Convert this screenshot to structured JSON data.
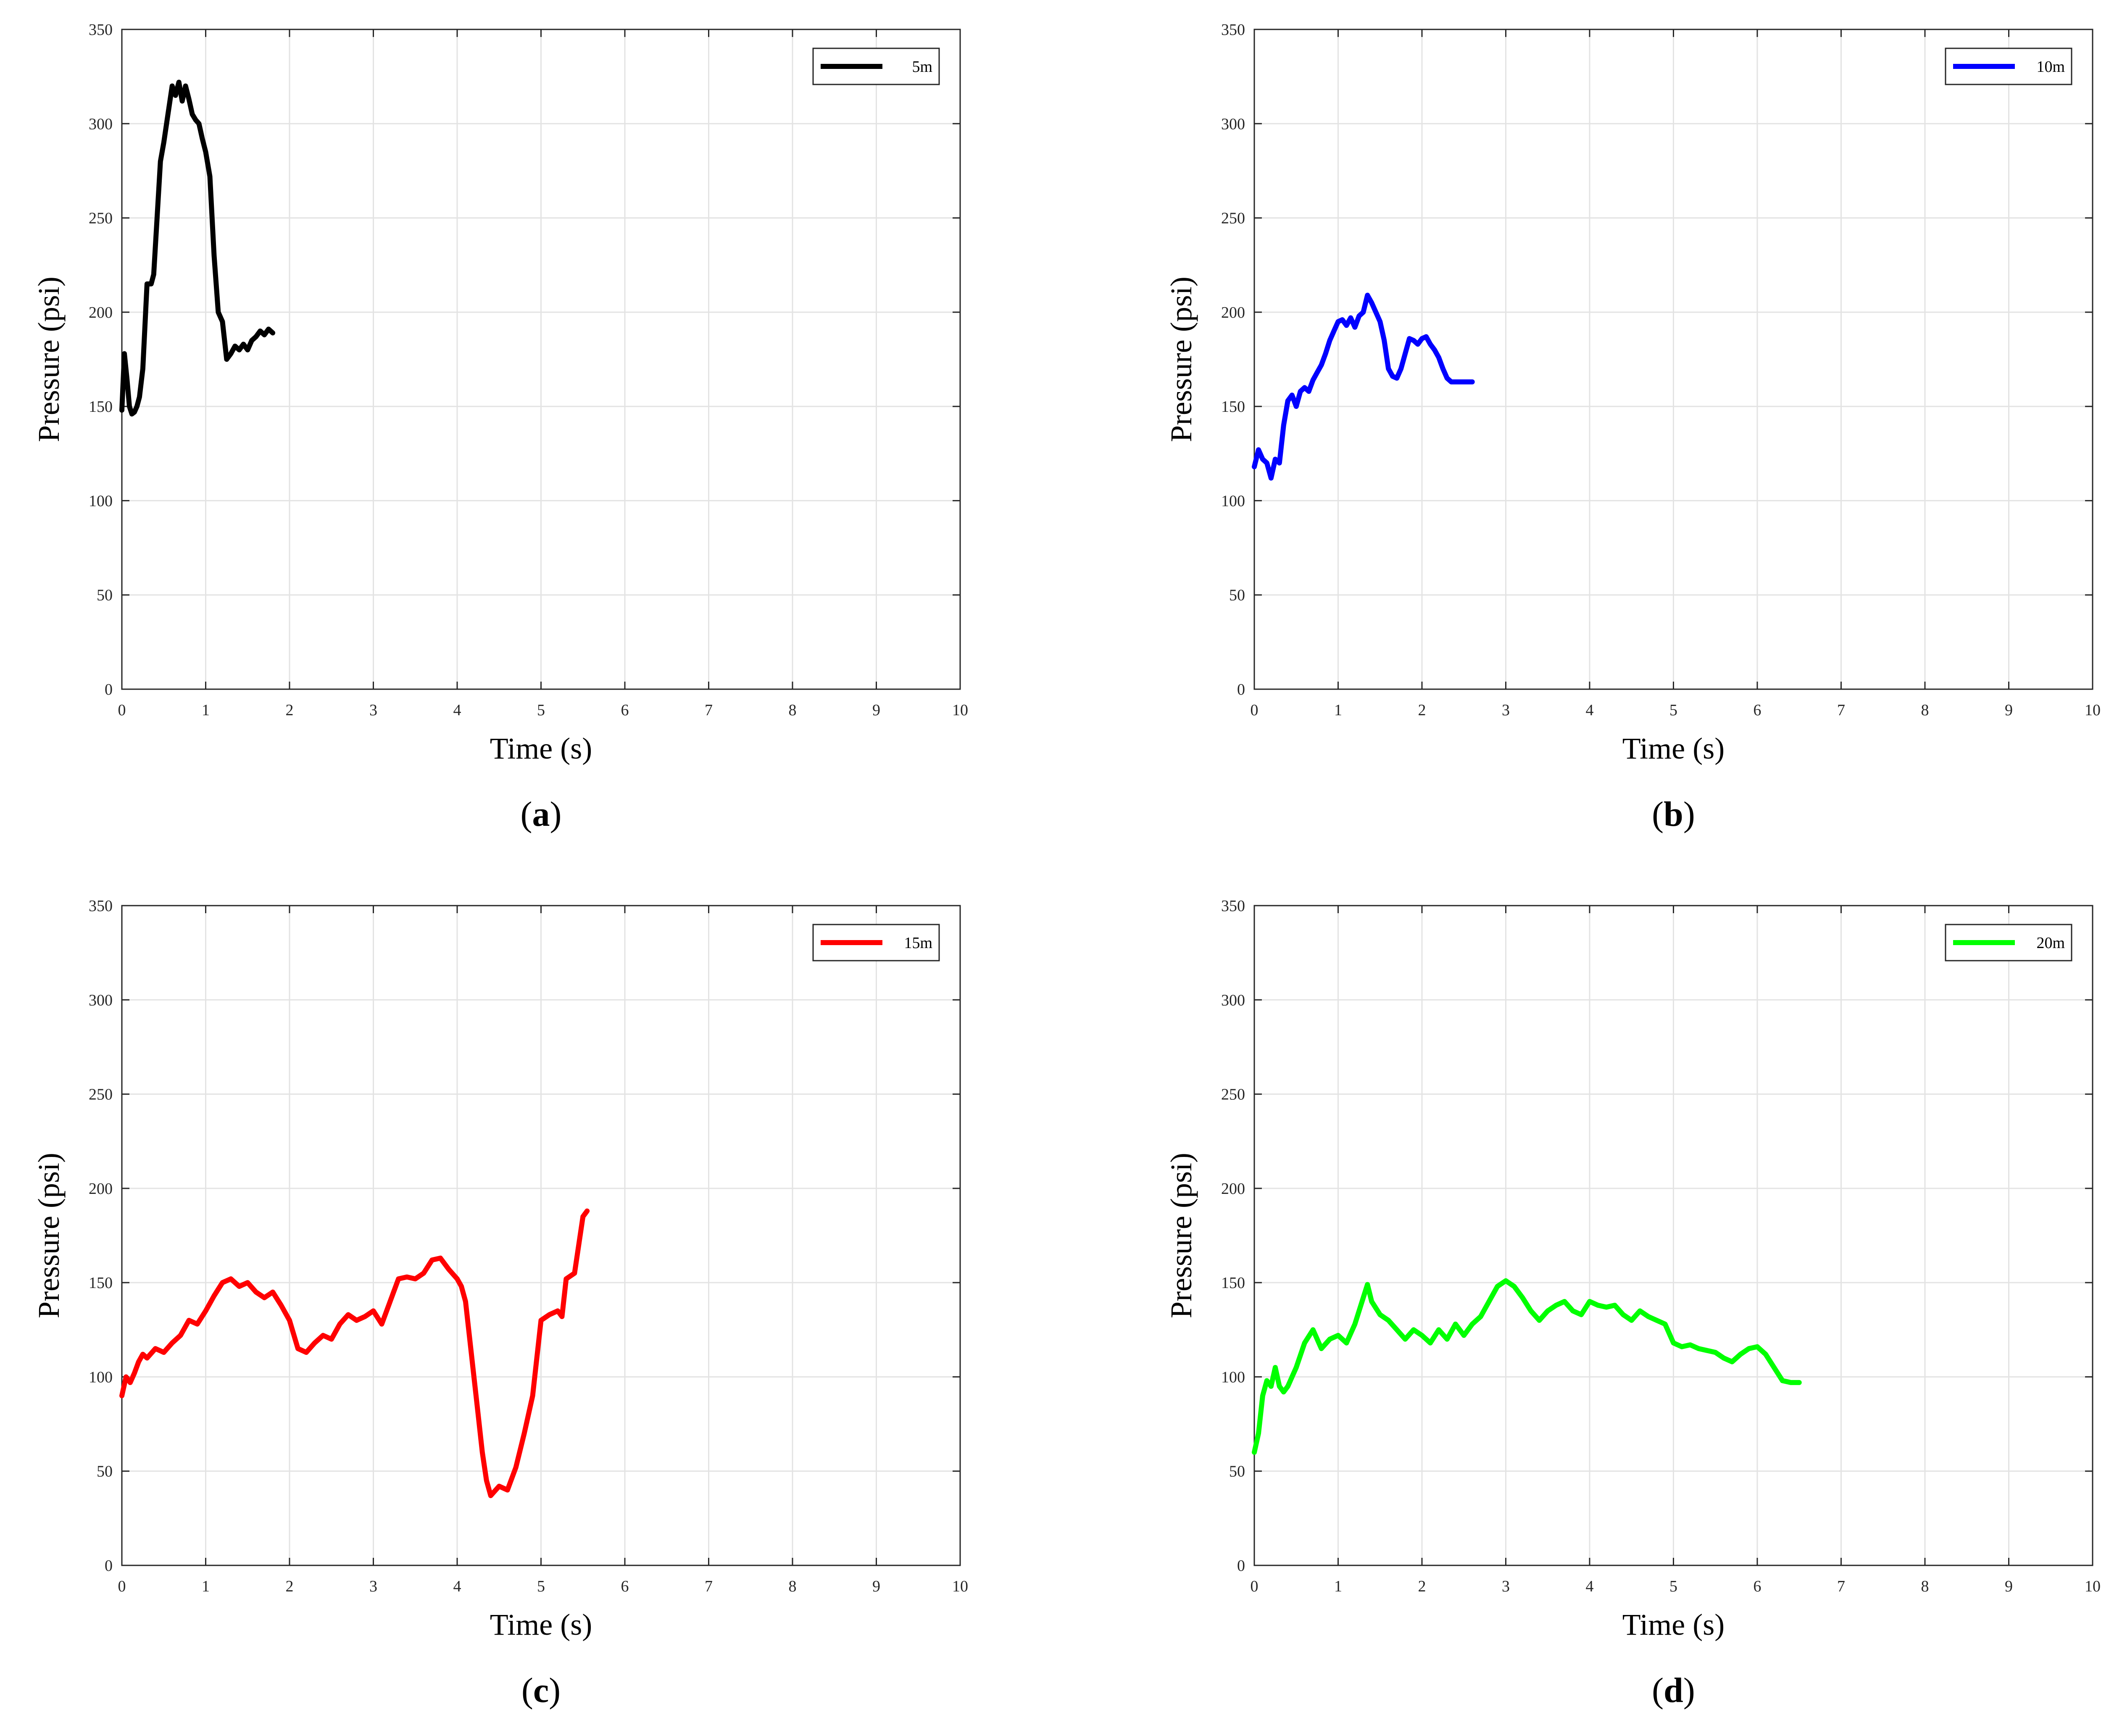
{
  "chart_data": [
    {
      "type": "line",
      "panel_label": "a",
      "xlabel": "Time (s)",
      "ylabel": "Pressure (psi)",
      "xlim": [
        0,
        10
      ],
      "ylim": [
        0,
        350
      ],
      "xticks": [
        0,
        1,
        2,
        3,
        4,
        5,
        6,
        7,
        8,
        9,
        10
      ],
      "yticks": [
        0,
        50,
        100,
        150,
        200,
        250,
        300,
        350
      ],
      "grid": true,
      "legend_position": "top-right",
      "series": [
        {
          "name": "5m",
          "color": "#000000",
          "x": [
            0,
            0.03,
            0.06,
            0.09,
            0.12,
            0.15,
            0.18,
            0.21,
            0.25,
            0.3,
            0.35,
            0.38,
            0.42,
            0.46,
            0.5,
            0.55,
            0.6,
            0.64,
            0.68,
            0.72,
            0.76,
            0.8,
            0.84,
            0.88,
            0.92,
            0.96,
            1.0,
            1.05,
            1.1,
            1.15,
            1.2,
            1.25,
            1.3,
            1.35,
            1.4,
            1.45,
            1.5,
            1.55,
            1.6,
            1.65,
            1.7,
            1.75,
            1.8
          ],
          "y": [
            148,
            178,
            165,
            150,
            146,
            147,
            150,
            155,
            170,
            215,
            215,
            220,
            250,
            280,
            290,
            305,
            320,
            315,
            322,
            312,
            320,
            313,
            305,
            302,
            300,
            292,
            285,
            272,
            230,
            200,
            195,
            175,
            178,
            182,
            180,
            183,
            180,
            185,
            187,
            190,
            188,
            191,
            189
          ]
        }
      ]
    },
    {
      "type": "line",
      "panel_label": "b",
      "xlabel": "Time (s)",
      "ylabel": "Pressure (psi)",
      "xlim": [
        0,
        10
      ],
      "ylim": [
        0,
        350
      ],
      "xticks": [
        0,
        1,
        2,
        3,
        4,
        5,
        6,
        7,
        8,
        9,
        10
      ],
      "yticks": [
        0,
        50,
        100,
        150,
        200,
        250,
        300,
        350
      ],
      "grid": true,
      "legend_position": "top-right",
      "series": [
        {
          "name": "10m",
          "color": "#0000ff",
          "x": [
            0,
            0.05,
            0.1,
            0.15,
            0.2,
            0.25,
            0.3,
            0.35,
            0.4,
            0.45,
            0.5,
            0.55,
            0.6,
            0.65,
            0.7,
            0.75,
            0.8,
            0.85,
            0.9,
            0.95,
            1.0,
            1.05,
            1.1,
            1.15,
            1.2,
            1.25,
            1.3,
            1.35,
            1.4,
            1.45,
            1.5,
            1.55,
            1.6,
            1.65,
            1.7,
            1.75,
            1.8,
            1.85,
            1.9,
            1.95,
            2.0,
            2.05,
            2.1,
            2.15,
            2.2,
            2.25,
            2.3,
            2.35,
            2.4,
            2.45,
            2.5,
            2.55,
            2.6
          ],
          "y": [
            118,
            127,
            122,
            120,
            112,
            122,
            120,
            140,
            153,
            156,
            150,
            158,
            160,
            158,
            164,
            168,
            172,
            178,
            185,
            190,
            195,
            196,
            193,
            197,
            192,
            198,
            200,
            209,
            205,
            200,
            195,
            185,
            170,
            166,
            165,
            170,
            178,
            186,
            185,
            183,
            186,
            187,
            183,
            180,
            176,
            170,
            165,
            163,
            163,
            163,
            163,
            163,
            163
          ]
        }
      ]
    },
    {
      "type": "line",
      "panel_label": "c",
      "xlabel": "Time (s)",
      "ylabel": "Pressure (psi)",
      "xlim": [
        0,
        10
      ],
      "ylim": [
        0,
        350
      ],
      "xticks": [
        0,
        1,
        2,
        3,
        4,
        5,
        6,
        7,
        8,
        9,
        10
      ],
      "yticks": [
        0,
        50,
        100,
        150,
        200,
        250,
        300,
        350
      ],
      "grid": true,
      "legend_position": "top-right",
      "series": [
        {
          "name": "15m",
          "color": "#ff0000",
          "x": [
            0,
            0.05,
            0.1,
            0.15,
            0.2,
            0.25,
            0.3,
            0.4,
            0.5,
            0.6,
            0.7,
            0.8,
            0.9,
            1.0,
            1.1,
            1.2,
            1.3,
            1.4,
            1.5,
            1.6,
            1.7,
            1.8,
            1.9,
            2.0,
            2.1,
            2.2,
            2.3,
            2.4,
            2.5,
            2.6,
            2.7,
            2.8,
            2.9,
            3.0,
            3.1,
            3.2,
            3.3,
            3.4,
            3.5,
            3.6,
            3.7,
            3.8,
            3.9,
            4.0,
            4.05,
            4.1,
            4.15,
            4.2,
            4.25,
            4.3,
            4.35,
            4.4,
            4.5,
            4.6,
            4.7,
            4.8,
            4.9,
            5.0,
            5.1,
            5.2,
            5.25,
            5.3,
            5.4,
            5.5,
            5.55
          ],
          "y": [
            90,
            100,
            97,
            102,
            108,
            112,
            110,
            115,
            113,
            118,
            122,
            130,
            128,
            135,
            143,
            150,
            152,
            148,
            150,
            145,
            142,
            145,
            138,
            130,
            115,
            113,
            118,
            122,
            120,
            128,
            133,
            130,
            132,
            135,
            128,
            140,
            152,
            153,
            152,
            155,
            162,
            163,
            157,
            152,
            148,
            140,
            120,
            100,
            80,
            60,
            45,
            37,
            42,
            40,
            52,
            70,
            90,
            130,
            133,
            135,
            132,
            152,
            155,
            185,
            188
          ]
        }
      ]
    },
    {
      "type": "line",
      "panel_label": "d",
      "xlabel": "Time (s)",
      "ylabel": "Pressure (psi)",
      "xlim": [
        0,
        10
      ],
      "ylim": [
        0,
        350
      ],
      "xticks": [
        0,
        1,
        2,
        3,
        4,
        5,
        6,
        7,
        8,
        9,
        10
      ],
      "yticks": [
        0,
        50,
        100,
        150,
        200,
        250,
        300,
        350
      ],
      "grid": true,
      "legend_position": "top-right",
      "series": [
        {
          "name": "20m",
          "color": "#00ff00",
          "x": [
            0,
            0.05,
            0.1,
            0.15,
            0.2,
            0.25,
            0.3,
            0.35,
            0.4,
            0.5,
            0.6,
            0.7,
            0.8,
            0.9,
            1.0,
            1.1,
            1.2,
            1.3,
            1.35,
            1.4,
            1.5,
            1.6,
            1.7,
            1.8,
            1.9,
            2.0,
            2.1,
            2.2,
            2.3,
            2.4,
            2.5,
            2.6,
            2.7,
            2.8,
            2.9,
            3.0,
            3.1,
            3.2,
            3.3,
            3.4,
            3.5,
            3.6,
            3.7,
            3.8,
            3.9,
            4.0,
            4.1,
            4.2,
            4.3,
            4.4,
            4.5,
            4.6,
            4.7,
            4.8,
            4.9,
            5.0,
            5.1,
            5.2,
            5.3,
            5.4,
            5.5,
            5.6,
            5.7,
            5.8,
            5.9,
            6.0,
            6.1,
            6.2,
            6.3,
            6.4,
            6.5
          ],
          "y": [
            60,
            70,
            90,
            98,
            95,
            105,
            95,
            92,
            95,
            105,
            118,
            125,
            115,
            120,
            122,
            118,
            128,
            142,
            149,
            140,
            133,
            130,
            125,
            120,
            125,
            122,
            118,
            125,
            120,
            128,
            122,
            128,
            132,
            140,
            148,
            151,
            148,
            142,
            135,
            130,
            135,
            138,
            140,
            135,
            133,
            140,
            138,
            137,
            138,
            133,
            130,
            135,
            132,
            130,
            128,
            118,
            116,
            117,
            115,
            114,
            113,
            110,
            108,
            112,
            115,
            116,
            112,
            105,
            98,
            97,
            97
          ]
        }
      ]
    }
  ]
}
